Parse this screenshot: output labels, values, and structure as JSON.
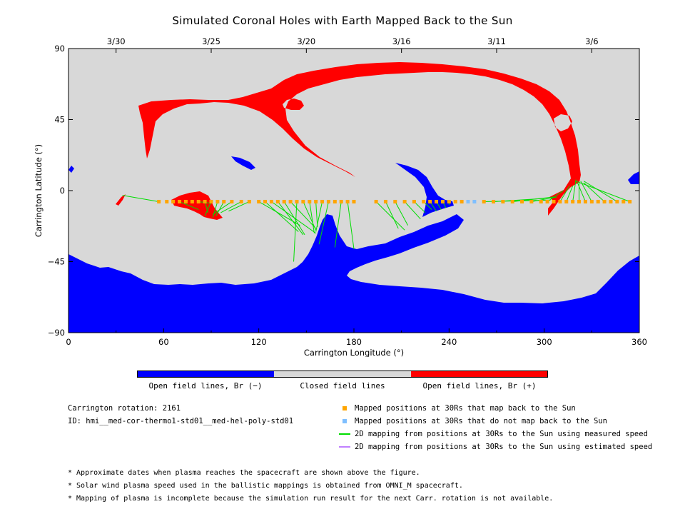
{
  "title": "Simulated Coronal Holes with Earth Mapped Back to the Sun",
  "chart_data": {
    "type": "scatter",
    "title": "Simulated Coronal Holes with Earth Mapped Back to the Sun",
    "xlabel": "Carrington Longitude (°)",
    "ylabel": "Carrington Latitude (°)",
    "xlim": [
      0,
      360
    ],
    "ylim": [
      -90,
      90
    ],
    "x_ticks": [
      0,
      60,
      120,
      180,
      240,
      300,
      360
    ],
    "y_ticks": [
      -90,
      -45,
      0,
      45,
      90
    ],
    "top_ticks": [
      {
        "label": "3/30",
        "lon": 30
      },
      {
        "label": "3/25",
        "lon": 90
      },
      {
        "label": "3/20",
        "lon": 150
      },
      {
        "label": "3/16",
        "lon": 210
      },
      {
        "label": "3/11",
        "lon": 270
      },
      {
        "label": "3/6",
        "lon": 330
      }
    ],
    "colors": {
      "open_negative": "#0000ff",
      "closed": "#d8d8d8",
      "open_positive": "#ff0000",
      "mapped": "#ffa500",
      "not_mapped": "#7fbfff",
      "measured": "#00dd00",
      "estimated": "#c080ff"
    },
    "mapped_lat": -7,
    "mapped_lon": [
      57,
      62,
      66,
      70,
      74,
      78,
      82,
      86,
      90,
      94,
      98,
      103,
      109,
      114,
      120,
      124,
      128,
      132,
      136,
      140,
      144,
      148,
      152,
      156,
      160,
      164,
      168,
      172,
      176,
      180,
      194,
      200,
      206,
      212,
      218,
      224,
      228,
      232,
      236,
      240,
      244,
      248,
      262,
      268,
      274,
      280,
      286,
      292,
      298,
      302,
      306,
      310,
      314,
      318,
      322,
      326,
      330,
      334,
      338,
      342,
      346,
      350,
      354
    ],
    "not_mapped_lon": [
      252,
      256
    ],
    "mappings": [
      {
        "from": [
          57,
          -7
        ],
        "to": [
          34,
          -3
        ]
      },
      {
        "from": [
          70,
          -7
        ],
        "to": [
          82,
          -12
        ]
      },
      {
        "from": [
          82,
          -7
        ],
        "to": [
          90,
          -8
        ]
      },
      {
        "from": [
          86,
          -7
        ],
        "to": [
          88,
          -14
        ]
      },
      {
        "from": [
          90,
          -7
        ],
        "to": [
          86,
          -16
        ]
      },
      {
        "from": [
          94,
          -7
        ],
        "to": [
          91,
          -17
        ]
      },
      {
        "from": [
          98,
          -7
        ],
        "to": [
          93,
          -16
        ]
      },
      {
        "from": [
          103,
          -7
        ],
        "to": [
          91,
          -15
        ]
      },
      {
        "from": [
          109,
          -7
        ],
        "to": [
          96,
          -14
        ]
      },
      {
        "from": [
          114,
          -7
        ],
        "to": [
          101,
          -13
        ]
      },
      {
        "from": [
          120,
          -7
        ],
        "to": [
          146,
          -22
        ]
      },
      {
        "from": [
          124,
          -7
        ],
        "to": [
          145,
          -26
        ]
      },
      {
        "from": [
          128,
          -7
        ],
        "to": [
          156,
          -27
        ]
      },
      {
        "from": [
          132,
          -7
        ],
        "to": [
          148,
          -28
        ]
      },
      {
        "from": [
          136,
          -7
        ],
        "to": [
          149,
          -28
        ]
      },
      {
        "from": [
          140,
          -7
        ],
        "to": [
          156,
          -24
        ]
      },
      {
        "from": [
          144,
          -7
        ],
        "to": [
          142,
          -45
        ]
      },
      {
        "from": [
          148,
          -7
        ],
        "to": [
          156,
          -25
        ]
      },
      {
        "from": [
          152,
          -7
        ],
        "to": [
          155,
          -27
        ]
      },
      {
        "from": [
          156,
          -7
        ],
        "to": [
          157,
          -23
        ]
      },
      {
        "from": [
          160,
          -7
        ],
        "to": [
          156,
          -26
        ]
      },
      {
        "from": [
          164,
          -7
        ],
        "to": [
          158,
          -34
        ]
      },
      {
        "from": [
          172,
          -7
        ],
        "to": [
          168,
          -36
        ]
      },
      {
        "from": [
          176,
          -7
        ],
        "to": [
          180,
          -37
        ]
      },
      {
        "from": [
          194,
          -7
        ],
        "to": [
          212,
          -25
        ]
      },
      {
        "from": [
          200,
          -7
        ],
        "to": [
          208,
          -24
        ]
      },
      {
        "from": [
          206,
          -7
        ],
        "to": [
          214,
          -22
        ]
      },
      {
        "from": [
          212,
          -7
        ],
        "to": [
          222,
          -18
        ]
      },
      {
        "from": [
          218,
          -7
        ],
        "to": [
          225,
          -14
        ]
      },
      {
        "from": [
          224,
          -7
        ],
        "to": [
          229,
          -12
        ]
      },
      {
        "from": [
          228,
          -7
        ],
        "to": [
          232,
          -13
        ]
      },
      {
        "from": [
          232,
          -7
        ],
        "to": [
          235,
          -12
        ]
      },
      {
        "from": [
          236,
          -7
        ],
        "to": [
          238,
          -11
        ]
      },
      {
        "from": [
          240,
          -7
        ],
        "to": [
          240,
          -9
        ]
      },
      {
        "from": [
          262,
          -7
        ],
        "to": [
          304,
          -6
        ]
      },
      {
        "from": [
          268,
          -7
        ],
        "to": [
          300,
          -5
        ]
      },
      {
        "from": [
          280,
          -7
        ],
        "to": [
          306,
          -4
        ]
      },
      {
        "from": [
          292,
          -7
        ],
        "to": [
          308,
          -4
        ]
      },
      {
        "from": [
          302,
          -7
        ],
        "to": [
          312,
          0
        ]
      },
      {
        "from": [
          310,
          -7
        ],
        "to": [
          316,
          3
        ]
      },
      {
        "from": [
          314,
          -7
        ],
        "to": [
          318,
          3
        ]
      },
      {
        "from": [
          318,
          -7
        ],
        "to": [
          320,
          7
        ]
      },
      {
        "from": [
          322,
          -7
        ],
        "to": [
          322,
          5
        ]
      },
      {
        "from": [
          326,
          -7
        ],
        "to": [
          321,
          5
        ]
      },
      {
        "from": [
          330,
          -7
        ],
        "to": [
          323,
          6
        ]
      },
      {
        "from": [
          338,
          -7
        ],
        "to": [
          325,
          5
        ]
      },
      {
        "from": [
          346,
          -7
        ],
        "to": [
          325,
          6
        ]
      },
      {
        "from": [
          354,
          -7
        ],
        "to": [
          320,
          6
        ]
      }
    ],
    "legend": [
      "Mapped positions at 30Rs that map back to the Sun",
      "Mapped positions at 30Rs that do not map back to the Sun",
      "2D mapping from positions at 30Rs to the Sun using measured speed",
      "2D mapping from positions at 30Rs to the Sun using estimated speed"
    ]
  },
  "colorbar": {
    "labels": [
      "Open field lines, Br (−)",
      "Closed field lines",
      "Open field lines, Br (+)"
    ]
  },
  "info": {
    "rotation": "Carrington rotation: 2161",
    "id": "ID: hmi__med-cor-thermo1-std01__med-hel-poly-std01"
  },
  "notes": [
    "* Approximate dates when plasma reaches the spacecraft are shown above the figure.",
    "* Solar wind plasma speed used in the ballistic mappings is obtained from OMNI_M spacecraft.",
    "* Mapping of plasma is incomplete because the simulation run result for the next Carr. rotation is not available."
  ]
}
